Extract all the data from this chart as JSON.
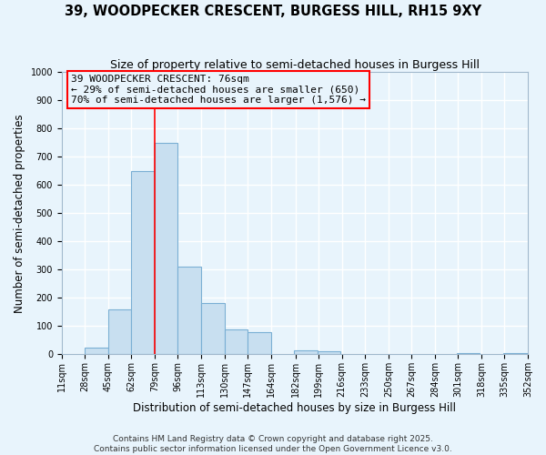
{
  "title": "39, WOODPECKER CRESCENT, BURGESS HILL, RH15 9XY",
  "subtitle": "Size of property relative to semi-detached houses in Burgess Hill",
  "xlabel": "Distribution of semi-detached houses by size in Burgess Hill",
  "ylabel": "Number of semi-detached properties",
  "bin_edges": [
    11,
    28,
    45,
    62,
    79,
    96,
    113,
    130,
    147,
    164,
    181,
    198,
    215,
    232,
    249,
    266,
    283,
    300,
    317,
    334,
    352
  ],
  "bar_heights": [
    0,
    25,
    160,
    650,
    750,
    310,
    183,
    90,
    80,
    0,
    15,
    10,
    0,
    0,
    0,
    0,
    0,
    5,
    0,
    5
  ],
  "bar_color": "#c8dff0",
  "bar_edgecolor": "#7aafd4",
  "ylim": [
    0,
    1000
  ],
  "xlim": [
    11,
    352
  ],
  "yticks": [
    0,
    100,
    200,
    300,
    400,
    500,
    600,
    700,
    800,
    900,
    1000
  ],
  "xtick_labels": [
    "11sqm",
    "28sqm",
    "45sqm",
    "62sqm",
    "79sqm",
    "96sqm",
    "113sqm",
    "130sqm",
    "147sqm",
    "164sqm",
    "182sqm",
    "199sqm",
    "216sqm",
    "233sqm",
    "250sqm",
    "267sqm",
    "284sqm",
    "301sqm",
    "318sqm",
    "335sqm",
    "352sqm"
  ],
  "xtick_positions": [
    11,
    28,
    45,
    62,
    79,
    96,
    113,
    130,
    147,
    164,
    182,
    199,
    216,
    233,
    250,
    267,
    284,
    301,
    318,
    335,
    352
  ],
  "red_line_x": 79,
  "annotation_title": "39 WOODPECKER CRESCENT: 76sqm",
  "annotation_line1": "← 29% of semi-detached houses are smaller (650)",
  "annotation_line2": "70% of semi-detached houses are larger (1,576) →",
  "footer1": "Contains HM Land Registry data © Crown copyright and database right 2025.",
  "footer2": "Contains public sector information licensed under the Open Government Licence v3.0.",
  "background_color": "#e8f4fc",
  "grid_color": "#ffffff",
  "title_fontsize": 10.5,
  "subtitle_fontsize": 9,
  "axis_label_fontsize": 8.5,
  "tick_fontsize": 7,
  "annotation_fontsize": 8,
  "footer_fontsize": 6.5
}
